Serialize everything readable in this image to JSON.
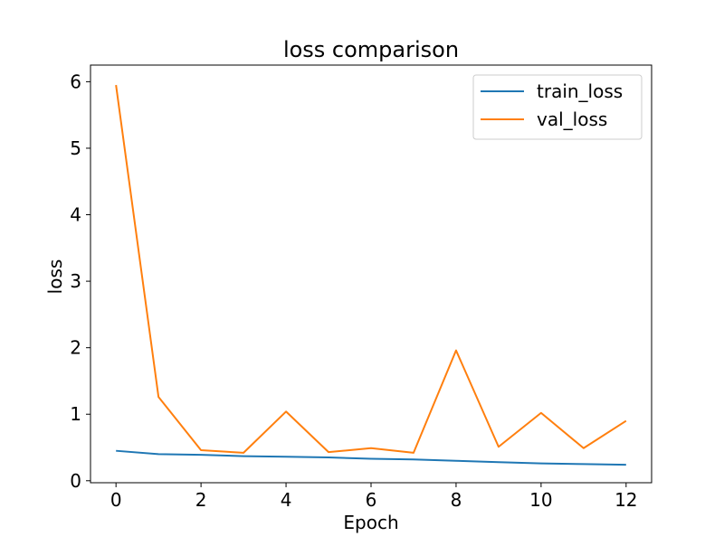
{
  "chart_data": {
    "type": "line",
    "title": "loss comparison",
    "xlabel": "Epoch",
    "ylabel": "loss",
    "x": [
      0,
      1,
      2,
      3,
      4,
      5,
      6,
      7,
      8,
      9,
      10,
      11,
      12
    ],
    "xlim": [
      -0.6,
      12.6
    ],
    "ylim": [
      -0.03,
      6.25
    ],
    "xticks": [
      0,
      2,
      4,
      6,
      8,
      10,
      12
    ],
    "xtick_labels": [
      "0",
      "2",
      "4",
      "6",
      "8",
      "10",
      "12"
    ],
    "yticks": [
      0,
      1,
      2,
      3,
      4,
      5,
      6
    ],
    "ytick_labels": [
      "0",
      "1",
      "2",
      "3",
      "4",
      "5",
      "6"
    ],
    "grid": false,
    "legend_position": "top-right",
    "series": [
      {
        "name": "train_loss",
        "color": "#1f77b4",
        "values": [
          0.45,
          0.4,
          0.39,
          0.37,
          0.36,
          0.35,
          0.33,
          0.32,
          0.3,
          0.28,
          0.26,
          0.25,
          0.24
        ]
      },
      {
        "name": "val_loss",
        "color": "#ff7f0e",
        "values": [
          5.95,
          1.26,
          0.46,
          0.42,
          1.04,
          0.43,
          0.49,
          0.42,
          1.96,
          0.51,
          1.02,
          0.49,
          0.9
        ]
      }
    ]
  }
}
